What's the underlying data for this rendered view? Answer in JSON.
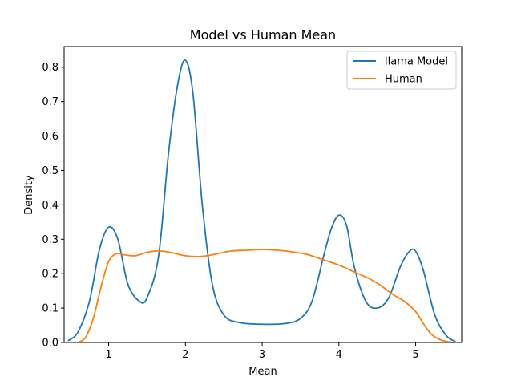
{
  "chart_data": {
    "type": "line",
    "title": "Model vs Human Mean",
    "xlabel": "Mean",
    "ylabel": "Density",
    "xlim": [
      0.42,
      5.6
    ],
    "ylim": [
      0,
      0.86
    ],
    "xticks": [
      "1",
      "2",
      "3",
      "4",
      "5"
    ],
    "yticks": [
      "0.0",
      "0.1",
      "0.2",
      "0.3",
      "0.4",
      "0.5",
      "0.6",
      "0.7",
      "0.8"
    ],
    "grid": false,
    "legend_position": "top-right",
    "series": [
      {
        "name": "llama Model",
        "color": "#1f77b4",
        "x": [
          0.47,
          0.6,
          0.75,
          0.88,
          1.0,
          1.12,
          1.25,
          1.4,
          1.5,
          1.65,
          1.78,
          1.9,
          2.0,
          2.1,
          2.22,
          2.35,
          2.5,
          2.7,
          3.0,
          3.3,
          3.5,
          3.65,
          3.8,
          3.9,
          4.0,
          4.1,
          4.2,
          4.35,
          4.5,
          4.65,
          4.8,
          4.92,
          5.0,
          5.1,
          5.25,
          5.4,
          5.52
        ],
        "y": [
          0.005,
          0.03,
          0.12,
          0.27,
          0.335,
          0.3,
          0.17,
          0.12,
          0.13,
          0.25,
          0.55,
          0.75,
          0.82,
          0.72,
          0.4,
          0.17,
          0.08,
          0.058,
          0.053,
          0.055,
          0.07,
          0.12,
          0.25,
          0.33,
          0.37,
          0.34,
          0.22,
          0.12,
          0.1,
          0.13,
          0.22,
          0.265,
          0.265,
          0.21,
          0.08,
          0.02,
          0.003
        ]
      },
      {
        "name": "Human",
        "color": "#ff7f0e",
        "x": [
          0.62,
          0.7,
          0.8,
          0.9,
          1.0,
          1.1,
          1.2,
          1.35,
          1.5,
          1.65,
          1.8,
          2.0,
          2.2,
          2.4,
          2.6,
          2.8,
          3.0,
          3.2,
          3.4,
          3.6,
          3.8,
          4.0,
          4.2,
          4.4,
          4.55,
          4.7,
          4.85,
          5.0,
          5.1,
          5.2,
          5.3,
          5.4,
          5.5
        ],
        "y": [
          0.002,
          0.015,
          0.07,
          0.16,
          0.235,
          0.258,
          0.255,
          0.252,
          0.262,
          0.266,
          0.262,
          0.252,
          0.25,
          0.257,
          0.266,
          0.268,
          0.27,
          0.268,
          0.263,
          0.255,
          0.24,
          0.225,
          0.205,
          0.185,
          0.165,
          0.14,
          0.12,
          0.09,
          0.055,
          0.025,
          0.01,
          0.003,
          0.0
        ]
      }
    ]
  }
}
